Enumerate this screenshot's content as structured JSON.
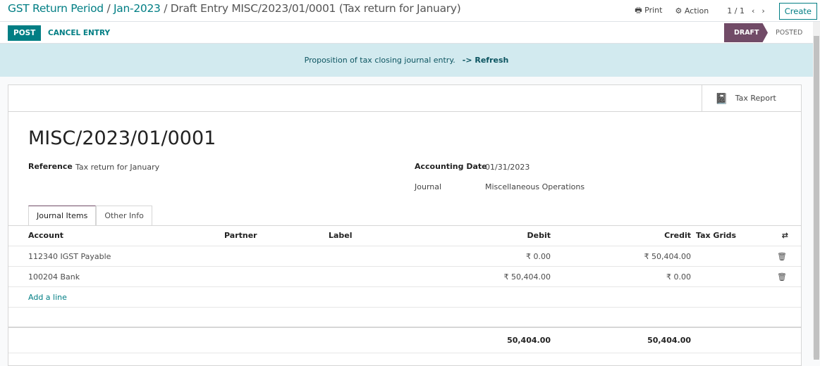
{
  "breadcrumb": {
    "items": [
      "GST Return Period",
      "Jan-2023"
    ],
    "current": "Draft Entry MISC/2023/01/0001 (Tax return for January)"
  },
  "toolbar": {
    "print": "Print",
    "action": "Action",
    "pager": "1 / 1",
    "create": "Create"
  },
  "actions": {
    "post": "POST",
    "cancel": "CANCEL ENTRY"
  },
  "status": {
    "draft": "DRAFT",
    "posted": "POSTED",
    "active_color": "#714b67"
  },
  "alert": {
    "text": "Proposition of tax closing journal entry.",
    "link": "-> Refresh"
  },
  "smart_button": {
    "tax_report": "Tax Report"
  },
  "entry": {
    "name": "MISC/2023/01/0001",
    "reference_label": "Reference",
    "reference": "Tax return for January",
    "date_label": "Accounting Date",
    "date": "01/31/2023",
    "journal_label": "Journal",
    "journal": "Miscellaneous Operations"
  },
  "tabs": [
    "Journal Items",
    "Other Info"
  ],
  "table": {
    "headers": {
      "account": "Account",
      "partner": "Partner",
      "label": "Label",
      "debit": "Debit",
      "credit": "Credit",
      "tax_grids": "Tax Grids"
    },
    "rows": [
      {
        "account": "112340 IGST Payable",
        "debit": "₹ 0.00",
        "credit": "₹ 50,404.00"
      },
      {
        "account": "100204 Bank",
        "debit": "₹ 50,404.00",
        "credit": "₹ 0.00"
      }
    ],
    "add_line": "Add a line",
    "total_debit": "50,404.00",
    "total_credit": "50,404.00"
  }
}
